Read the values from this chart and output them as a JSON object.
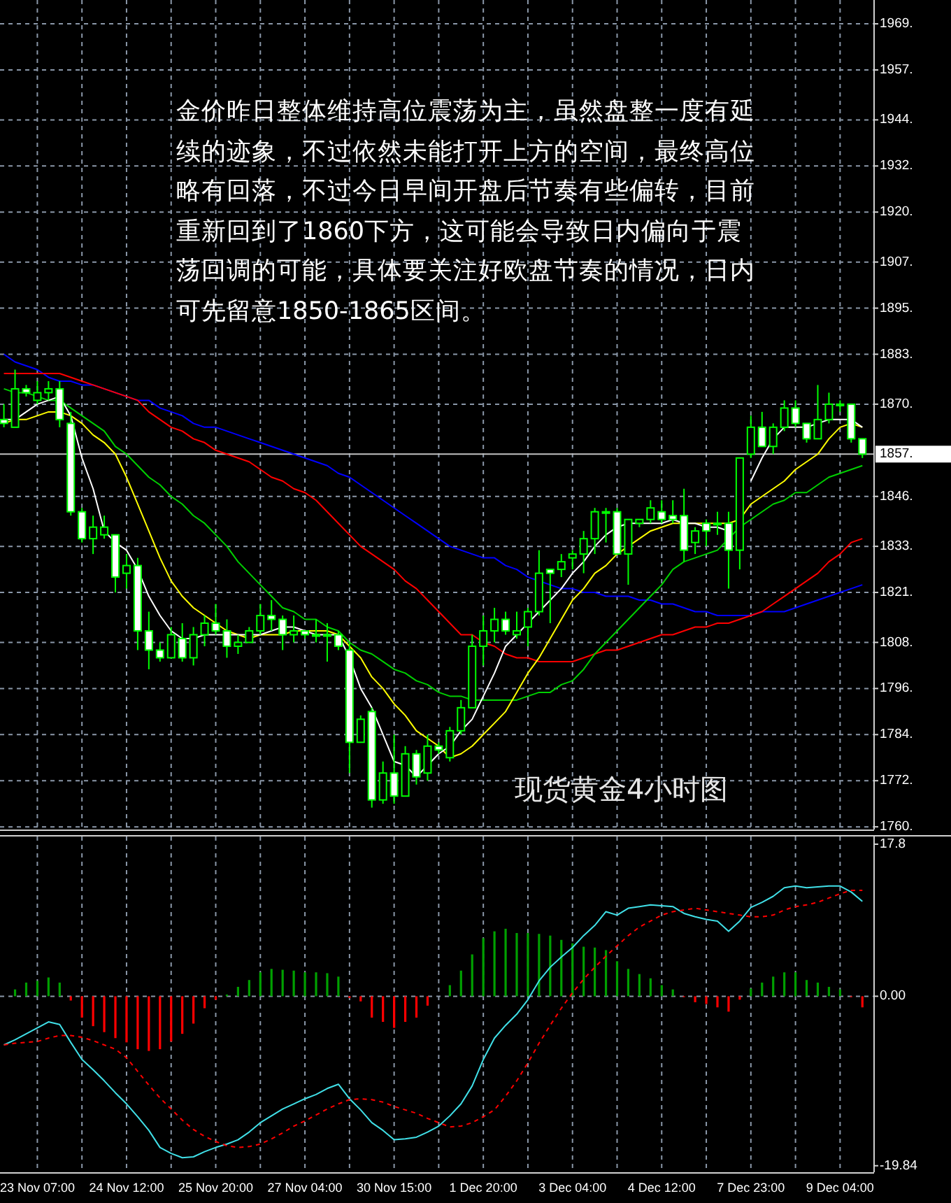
{
  "chart_data": [
    {
      "type": "candlestick",
      "tick_labels": "y",
      "grid": true,
      "categories": [
        null,
        null,
        null,
        null,
        null,
        null,
        null,
        null,
        null,
        null,
        null,
        null,
        null,
        null,
        null,
        null,
        null,
        null,
        null,
        null,
        null,
        null,
        null,
        null,
        null,
        null,
        null,
        null,
        null,
        null,
        null,
        null,
        null,
        null,
        null,
        null,
        null,
        null,
        null,
        null,
        null,
        null,
        null,
        null,
        null,
        null,
        null,
        null,
        null,
        null,
        null,
        null,
        null,
        null,
        null,
        null,
        null,
        null,
        null,
        null,
        null,
        null,
        null,
        null,
        null,
        null,
        null,
        null,
        null,
        null,
        null,
        null,
        null,
        null,
        null,
        null,
        null,
        null
      ],
      "ohlc": [
        [
          1866,
          1870,
          1864,
          1865
        ],
        [
          1864,
          1879,
          1864,
          1874
        ],
        [
          1874,
          1875,
          1872,
          1873
        ],
        [
          1871,
          1876,
          1870,
          1873
        ],
        [
          1873,
          1876,
          1871,
          1874
        ],
        [
          1874,
          1876,
          1864,
          1866
        ],
        [
          1865,
          1868,
          1841,
          1842
        ],
        [
          1842,
          1843,
          1834,
          1835
        ],
        [
          1835,
          1841,
          1831,
          1838
        ],
        [
          1836,
          1841,
          1835,
          1838
        ],
        [
          1836,
          1836,
          1821,
          1825
        ],
        [
          1826,
          1831,
          1822,
          1828
        ],
        [
          1828,
          1830,
          1806,
          1811
        ],
        [
          1811,
          1816,
          1801,
          1806
        ],
        [
          1806,
          1808,
          1803,
          1804
        ],
        [
          1804,
          1812,
          1804,
          1810
        ],
        [
          1809,
          1813,
          1803,
          1804
        ],
        [
          1804,
          1812,
          1802,
          1810
        ],
        [
          1810,
          1815,
          1807,
          1813
        ],
        [
          1813,
          1818,
          1810,
          1811
        ],
        [
          1811,
          1814,
          1804,
          1807
        ],
        [
          1807,
          1810,
          1805,
          1808
        ],
        [
          1808,
          1812,
          1808,
          1811
        ],
        [
          1811,
          1818,
          1810,
          1815
        ],
        [
          1815,
          1819,
          1811,
          1814
        ],
        [
          1814,
          1815,
          1806,
          1810
        ],
        [
          1810,
          1815,
          1808,
          1811
        ],
        [
          1811,
          1811,
          1809,
          1810
        ],
        [
          1810,
          1814,
          1808,
          1810
        ],
        [
          1810,
          1813,
          1803,
          1810
        ],
        [
          1810,
          1811,
          1806,
          1807
        ],
        [
          1806,
          1808,
          1774,
          1782
        ],
        [
          1782,
          1789,
          1782,
          1788
        ],
        [
          1790,
          1791,
          1765,
          1767
        ],
        [
          1767,
          1777,
          1766,
          1774
        ],
        [
          1774,
          1784,
          1766,
          1768
        ],
        [
          1768,
          1781,
          1768,
          1779
        ],
        [
          1779,
          1780,
          1771,
          1773
        ],
        [
          1774,
          1784,
          1772,
          1781
        ],
        [
          1781,
          1782,
          1779,
          1780
        ],
        [
          1778,
          1786,
          1777,
          1785
        ],
        [
          1785,
          1793,
          1784,
          1791
        ],
        [
          1791,
          1810,
          1791,
          1807
        ],
        [
          1807,
          1815,
          1802,
          1811
        ],
        [
          1811,
          1817,
          1808,
          1814
        ],
        [
          1814,
          1816,
          1810,
          1811
        ],
        [
          1810,
          1816,
          1809,
          1811
        ],
        [
          1812,
          1817,
          1807,
          1816
        ],
        [
          1816,
          1832,
          1815,
          1826
        ],
        [
          1827,
          1827,
          1813,
          1826
        ],
        [
          1827,
          1831,
          1825,
          1829
        ],
        [
          1830,
          1832,
          1827,
          1831
        ],
        [
          1831,
          1837,
          1826,
          1835
        ],
        [
          1835,
          1843,
          1831,
          1842
        ],
        [
          1842,
          1843,
          1834,
          1842
        ],
        [
          1842,
          1843,
          1831,
          1831
        ],
        [
          1831,
          1840,
          1823,
          1840
        ],
        [
          1839,
          1840,
          1838,
          1840
        ],
        [
          1840,
          1845,
          1839,
          1843
        ],
        [
          1842,
          1845,
          1839,
          1840
        ],
        [
          1841,
          1845,
          1839,
          1840
        ],
        [
          1841,
          1848,
          1829,
          1832
        ],
        [
          1834,
          1838,
          1831,
          1837
        ],
        [
          1839,
          1840,
          1833,
          1837
        ],
        [
          1839,
          1842,
          1836,
          1839
        ],
        [
          1839,
          1842,
          1822,
          1832
        ],
        [
          1832,
          1856,
          1827,
          1856
        ],
        [
          1857,
          1867,
          1856,
          1864
        ],
        [
          1864,
          1868,
          1859,
          1859
        ],
        [
          1859,
          1865,
          1857,
          1864
        ],
        [
          1864,
          1871,
          1863,
          1869
        ],
        [
          1869,
          1871,
          1864,
          1865
        ],
        [
          1865,
          1865,
          1860,
          1861
        ],
        [
          1861,
          1875,
          1861,
          1866
        ],
        [
          1866,
          1873,
          1865,
          1870
        ],
        [
          1870,
          1871,
          1868,
          1870
        ],
        [
          1870,
          1870,
          1860,
          1861
        ],
        [
          1861,
          1861,
          1856,
          1857
        ]
      ],
      "series": [
        {
          "type": "line",
          "color": "#0000ff",
          "values": [
            1883,
            1881,
            1880,
            1879,
            1877,
            1876,
            1876,
            1875,
            1875,
            1874,
            1873,
            1872,
            1871,
            1871,
            1869,
            1868,
            1867,
            1865,
            1864,
            1864,
            1863,
            1862,
            1861,
            1860,
            1859,
            1858,
            1857,
            1856,
            1855,
            1854,
            1852,
            1851,
            1849,
            1847,
            1845,
            1843,
            1841,
            1839,
            1837,
            1835,
            1833,
            1832,
            1831,
            1830,
            1830,
            1828,
            1827,
            1825,
            1824,
            1823,
            1822,
            1822,
            1821,
            1821,
            1820,
            1820,
            1820,
            1819,
            1819,
            1818,
            1818,
            1817,
            1816,
            1816,
            1815,
            1815,
            1815,
            1815,
            1816,
            1816,
            1816,
            1817,
            1818,
            1819,
            1820,
            1821,
            1822,
            1823
          ]
        },
        {
          "type": "line",
          "color": "#ff0000",
          "values": [
            1878,
            1878,
            1878,
            1878,
            1878,
            1878,
            1877,
            1876,
            1875,
            1874,
            1873,
            1872,
            1871,
            1868,
            1866,
            1864,
            1863,
            1861,
            1860,
            1858,
            1857,
            1856,
            1855,
            1853,
            1851,
            1850,
            1848,
            1847,
            1845,
            1842,
            1839,
            1836,
            1833,
            1831,
            1829,
            1827,
            1824,
            1822,
            1819,
            1816,
            1813,
            1810,
            1810,
            1808,
            1807,
            1805,
            1804,
            1804,
            1803,
            1803,
            1803,
            1803,
            1804,
            1805,
            1806,
            1806,
            1807,
            1808,
            1809,
            1810,
            1810,
            1811,
            1812,
            1812,
            1813,
            1813,
            1814,
            1815,
            1816,
            1818,
            1820,
            1822,
            1824,
            1826,
            1829,
            1831,
            1834,
            1835
          ]
        },
        {
          "type": "line",
          "color": "#00d000",
          "values": [
            1874,
            1873,
            1873,
            1872,
            1871,
            1871,
            1869,
            1867,
            1865,
            1863,
            1859,
            1857,
            1854,
            1851,
            1849,
            1846,
            1844,
            1841,
            1839,
            1836,
            1833,
            1829,
            1826,
            1823,
            1820,
            1817,
            1816,
            1814,
            1814,
            1812,
            1811,
            1808,
            1806,
            1805,
            1803,
            1801,
            1800,
            1798,
            1797,
            1795,
            1794,
            1794,
            1793,
            1793,
            1793,
            1793,
            1793,
            1794,
            1795,
            1795,
            1797,
            1798,
            1801,
            1805,
            1808,
            1811,
            1814,
            1817,
            1820,
            1823,
            1827,
            1829,
            1830,
            1831,
            1832,
            1835,
            1838,
            1840,
            1842,
            1844,
            1845,
            1847,
            1847,
            1849,
            1851,
            1852,
            1853,
            1854
          ]
        },
        {
          "type": "line",
          "color": "#ffff00",
          "values": [
            1865,
            1866,
            1866,
            1867,
            1868,
            1868,
            1867,
            1865,
            1862,
            1860,
            1857,
            1851,
            1844,
            1837,
            1830,
            1824,
            1820,
            1817,
            1815,
            1813,
            1811,
            1810,
            1809,
            1810,
            1810,
            1810,
            1811,
            1811,
            1811,
            1811,
            1810,
            1807,
            1804,
            1799,
            1796,
            1792,
            1789,
            1785,
            1783,
            1781,
            1778,
            1779,
            1781,
            1784,
            1787,
            1790,
            1795,
            1800,
            1804,
            1809,
            1814,
            1819,
            1822,
            1826,
            1828,
            1831,
            1833,
            1835,
            1837,
            1838,
            1839,
            1839,
            1839,
            1839,
            1839,
            1839,
            1840,
            1844,
            1846,
            1848,
            1850,
            1853,
            1855,
            1857,
            1861,
            1864,
            1865,
            1864
          ]
        },
        {
          "type": "line",
          "color": "#ffffff",
          "values": [
            1866,
            1866,
            1868,
            1870,
            1871,
            1872,
            1867,
            1856,
            1848,
            1837,
            1834,
            1832,
            1827,
            1820,
            1815,
            1811,
            1809,
            1809,
            1810,
            1810,
            1810,
            1810,
            1810,
            1810,
            1811,
            1812,
            1812,
            1811,
            1810,
            1810,
            1810,
            1804,
            1796,
            1791,
            1784,
            1777,
            1776,
            1773,
            1776,
            1779,
            1781,
            1785,
            1788,
            1794,
            1800,
            1807,
            1810,
            1813,
            1816,
            1819,
            1822,
            1826,
            1829,
            1833,
            1836,
            1838,
            1839,
            1839,
            1839,
            1839,
            1840,
            1839,
            1839,
            1838,
            1838,
            1837,
            null,
            1850,
            1856,
            1861,
            1864,
            1864,
            1864,
            1865,
            1866,
            1866,
            1866,
            1864
          ]
        }
      ],
      "ylim": [
        1759.3,
        1975.2
      ],
      "yticks": [
        {
          "value": 1969,
          "label": "1969."
        },
        {
          "value": 1957,
          "label": "1957."
        },
        {
          "value": 1944,
          "label": "1944."
        },
        {
          "value": 1932,
          "label": "1932."
        },
        {
          "value": 1920,
          "label": "1920."
        },
        {
          "value": 1907,
          "label": "1907."
        },
        {
          "value": 1895,
          "label": "1895."
        },
        {
          "value": 1883,
          "label": "1883."
        },
        {
          "value": 1870,
          "label": "1870."
        },
        {
          "value": 1846,
          "label": "1846."
        },
        {
          "value": 1833,
          "label": "1833."
        },
        {
          "value": 1821,
          "label": "1821."
        },
        {
          "value": 1808,
          "label": "1808."
        },
        {
          "value": 1796,
          "label": "1796."
        },
        {
          "value": 1784,
          "label": "1784."
        },
        {
          "value": 1772,
          "label": "1772."
        },
        {
          "value": 1760,
          "label": "1760."
        }
      ],
      "ref_lines": [
        {
          "axis": "y",
          "value": 1857,
          "label": "1857.",
          "color": "#c0c0c0"
        }
      ],
      "annotations": [
        "金价昨日整体维持高位震荡为主，虽然盘整一度有延续的迹象，不过依然未能打开上方的空间，最终高位略有回落，不过今日早间开盘后节奏有些偏转，目前重新回到了1860下方，这可能会导致日内偏向于震荡回调的可能，具体要关注好欧盘节奏的情况，日内可先留意1850-1865区间。",
        "现货黄金4小时图"
      ]
    },
    {
      "type": "bar",
      "grid": "x",
      "categories": [
        null,
        null,
        null,
        "23 Nov 07:00",
        null,
        null,
        null,
        null,
        null,
        null,
        null,
        "24 Nov 12:00",
        null,
        null,
        null,
        null,
        null,
        null,
        null,
        "25 Nov 20:00",
        null,
        null,
        null,
        null,
        null,
        null,
        null,
        "27 Nov 04:00",
        null,
        null,
        null,
        null,
        null,
        null,
        null,
        "30 Nov 15:00",
        null,
        null,
        null,
        null,
        null,
        null,
        null,
        "1 Dec 20:00",
        null,
        null,
        null,
        null,
        null,
        null,
        null,
        "3 Dec 04:00",
        null,
        null,
        null,
        null,
        null,
        null,
        null,
        "4 Dec 12:00",
        null,
        null,
        null,
        null,
        null,
        null,
        null,
        "7 Dec 23:00",
        null,
        null,
        null,
        null,
        null,
        null,
        null,
        "9 Dec 04:00",
        null,
        null
      ],
      "series": [
        {
          "type": "bar",
          "values": [
            null,
            0.8,
            1.6,
            1.8,
            2.2,
            1.6,
            -0.5,
            -2.5,
            -3.5,
            -4.2,
            -4.9,
            -5.4,
            -6.2,
            -6.4,
            -6.2,
            -5.3,
            -4.4,
            -3.2,
            -1.4,
            -0.4,
            0.2,
            1.1,
            1.9,
            2.8,
            3.2,
            3.1,
            3.0,
            2.8,
            2.8,
            2.7,
            2.3,
            -0.2,
            -0.6,
            -2.5,
            -3.0,
            -3.7,
            -3.0,
            -2.5,
            -1.1,
            null,
            1.3,
            3.0,
            4.9,
            6.8,
            7.6,
            7.9,
            7.4,
            7.4,
            7.3,
            7.1,
            6.6,
            6.2,
            5.8,
            5.7,
            5.4,
            4.1,
            3.2,
            2.6,
            2.1,
            1.3,
            0.8,
            -0.1,
            -0.7,
            -0.9,
            -1.3,
            -1.8,
            -0.4,
            0.9,
            1.6,
            2.3,
            2.8,
            2.8,
            1.9,
            1.6,
            1.1,
            0.8,
            -0.1,
            -1.3
          ],
          "colors": [
            null,
            "#00a000",
            "#00a000",
            "#00a000",
            "#00a000",
            "#00a000",
            "#ff0000",
            "#ff0000",
            "#ff0000",
            "#ff0000",
            "#ff0000",
            "#ff0000",
            "#ff0000",
            "#ff0000",
            "#ff0000",
            "#ff0000",
            "#ff0000",
            "#ff0000",
            "#ff0000",
            "#ff0000",
            "#00a000",
            "#00a000",
            "#00a000",
            "#00a000",
            "#00a000",
            "#00a000",
            "#00a000",
            "#00a000",
            "#00a000",
            "#00a000",
            "#00a000",
            "#ff0000",
            "#ff0000",
            "#ff0000",
            "#ff0000",
            "#ff0000",
            "#ff0000",
            "#ff0000",
            "#ff0000",
            null,
            "#00a000",
            "#00a000",
            "#00a000",
            "#00a000",
            "#00a000",
            "#00a000",
            "#00a000",
            "#00a000",
            "#00a000",
            "#00a000",
            "#00a000",
            "#00a000",
            "#00a000",
            "#00a000",
            "#00a000",
            "#00a000",
            "#00a000",
            "#00a000",
            "#00a000",
            "#00a000",
            "#00a000",
            "#ff0000",
            "#ff0000",
            "#ff0000",
            "#ff0000",
            "#ff0000",
            "#ff0000",
            "#00a000",
            "#00a000",
            "#00a000",
            "#00a000",
            "#00a000",
            "#00a000",
            "#00a000",
            "#00a000",
            "#00a000",
            "#ff0000",
            "#ff0000"
          ]
        },
        {
          "type": "line",
          "color": "#40e0e8",
          "values": [
            -5.7,
            -5.1,
            -4.4,
            -3.7,
            -3.0,
            -3.3,
            -5.4,
            -7.4,
            -8.6,
            -9.9,
            -11.3,
            -12.6,
            -14.1,
            -15.7,
            -17.7,
            -18.4,
            -18.9,
            -18.8,
            -18.2,
            -17.7,
            -17.3,
            -16.8,
            -15.9,
            -14.8,
            -14.0,
            -13.2,
            -12.6,
            -12.0,
            -11.5,
            -10.8,
            -10.3,
            -12.0,
            -13.3,
            -14.8,
            -15.7,
            -16.8,
            -16.7,
            -16.5,
            -15.9,
            -15.2,
            -14.0,
            -12.6,
            -10.5,
            -7.4,
            -4.9,
            -3.4,
            -2.1,
            -0.4,
            1.8,
            3.4,
            4.6,
            5.7,
            7.1,
            8.3,
            9.9,
            9.5,
            10.3,
            10.5,
            10.7,
            10.6,
            10.5,
            9.7,
            9.3,
            9.0,
            8.8,
            7.6,
            8.8,
            10.4,
            11.0,
            11.7,
            12.7,
            12.9,
            12.7,
            12.8,
            12.9,
            12.9,
            12.2,
            11.1
          ]
        },
        {
          "type": "line",
          "color": "#ff0000",
          "line_style": "dashed",
          "values": [
            -5.7,
            -5.5,
            -5.4,
            -5.3,
            -4.9,
            -4.6,
            -4.6,
            -4.8,
            -5.2,
            -5.7,
            -6.2,
            -7.2,
            -8.8,
            -10.4,
            -11.9,
            -13.2,
            -14.5,
            -15.6,
            -16.4,
            -17.0,
            -17.5,
            -17.7,
            -17.6,
            -17.3,
            -16.7,
            -16.0,
            -15.2,
            -14.6,
            -13.9,
            -13.2,
            -12.6,
            -12.1,
            -12.0,
            -12.1,
            -12.4,
            -12.9,
            -13.3,
            -13.7,
            -14.3,
            -14.8,
            -15.3,
            -15.2,
            -14.8,
            -14.1,
            -13.3,
            -11.7,
            -9.9,
            -7.8,
            -5.5,
            -3.4,
            -1.4,
            0.4,
            2.0,
            3.4,
            4.7,
            5.9,
            7.1,
            8.1,
            8.8,
            9.5,
            9.9,
            10.1,
            10.3,
            10.1,
            9.9,
            9.7,
            9.5,
            9.3,
            9.3,
            9.5,
            10.1,
            10.5,
            10.7,
            11.0,
            11.5,
            12.0,
            12.4,
            12.4
          ]
        }
      ],
      "ylim": [
        -20.6,
        18.7
      ],
      "yticks": [
        {
          "value": 17.8,
          "label": "17.8"
        },
        {
          "value": 0,
          "label": "0.00"
        },
        {
          "value": -19.84,
          "label": "-19.84"
        }
      ],
      "ref_lines": [
        {
          "axis": "y",
          "value": 0,
          "color": "#8a97a8",
          "line_style": "dashed"
        }
      ]
    }
  ]
}
